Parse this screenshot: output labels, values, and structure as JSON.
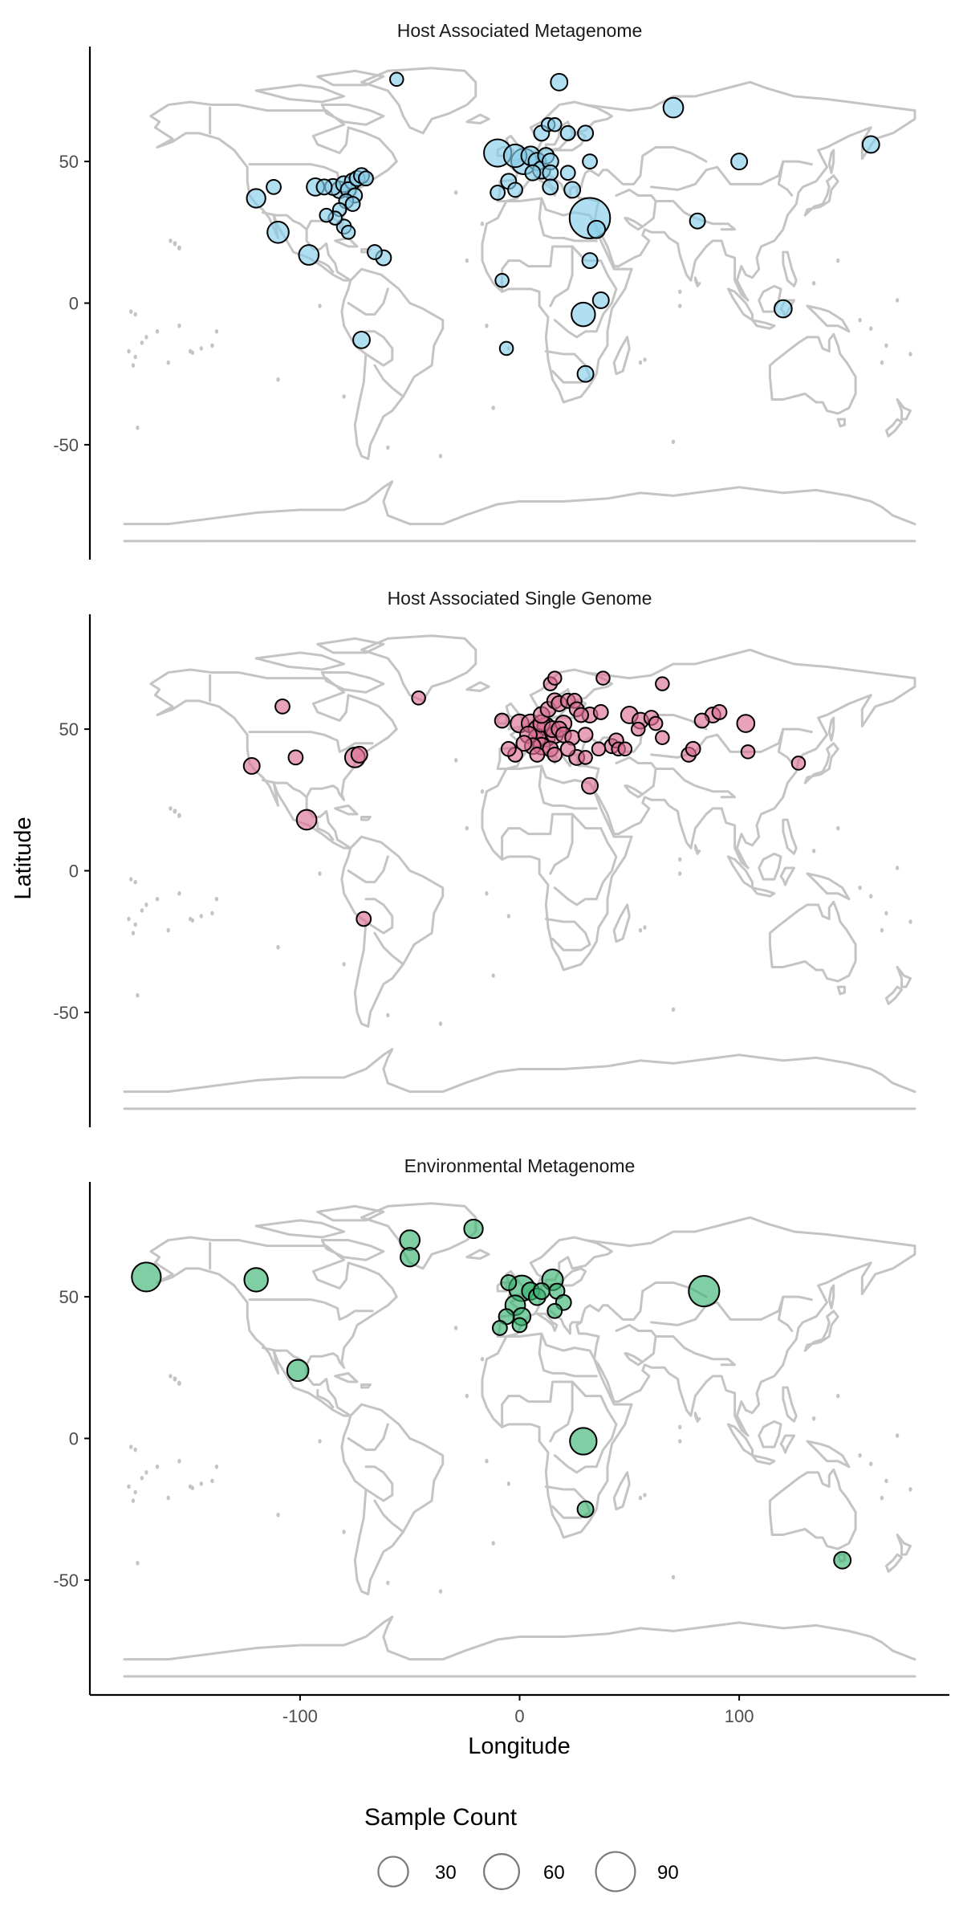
{
  "chart_data": {
    "type": "scatter",
    "subtype": "faceted world map bubble plot",
    "xlabel": "Longitude",
    "ylabel": "Latitude",
    "xlim": [
      -180,
      180
    ],
    "ylim": [
      -90,
      90
    ],
    "x_ticks": [
      -100,
      0,
      100
    ],
    "x_tick_labels": [
      "-100",
      "0",
      "100"
    ],
    "y_ticks": [
      50,
      0,
      -50
    ],
    "y_tick_labels": [
      "50",
      "0",
      "-50"
    ],
    "grid": false,
    "legend": {
      "title": "Sample Count",
      "position": "bottom",
      "sizes": [
        30,
        60,
        90
      ],
      "labels": [
        "30",
        "60",
        "90"
      ]
    },
    "panels": [
      {
        "title": "Host Associated Metagenome",
        "color": "#87ceeb",
        "points": [
          {
            "x": -120,
            "y": 37,
            "count": 10
          },
          {
            "x": -110,
            "y": 25,
            "count": 15
          },
          {
            "x": -96,
            "y": 17,
            "count": 12
          },
          {
            "x": -112,
            "y": 41,
            "count": 4
          },
          {
            "x": -93,
            "y": 41,
            "count": 8
          },
          {
            "x": -89,
            "y": 41,
            "count": 5
          },
          {
            "x": -85,
            "y": 41,
            "count": 6
          },
          {
            "x": -82,
            "y": 40,
            "count": 7
          },
          {
            "x": -80,
            "y": 42,
            "count": 6
          },
          {
            "x": -78,
            "y": 40,
            "count": 5
          },
          {
            "x": -76,
            "y": 43,
            "count": 6
          },
          {
            "x": -74,
            "y": 44,
            "count": 5
          },
          {
            "x": -72,
            "y": 45,
            "count": 5
          },
          {
            "x": -70,
            "y": 44,
            "count": 4
          },
          {
            "x": -75,
            "y": 38,
            "count": 4
          },
          {
            "x": -79,
            "y": 36,
            "count": 4
          },
          {
            "x": -82,
            "y": 33,
            "count": 3
          },
          {
            "x": -76,
            "y": 35,
            "count": 4
          },
          {
            "x": -84,
            "y": 30,
            "count": 3
          },
          {
            "x": -80,
            "y": 27,
            "count": 4
          },
          {
            "x": -78,
            "y": 25,
            "count": 3
          },
          {
            "x": -88,
            "y": 31,
            "count": 3
          },
          {
            "x": -66,
            "y": 18,
            "count": 4
          },
          {
            "x": -62,
            "y": 16,
            "count": 5
          },
          {
            "x": -72,
            "y": -13,
            "count": 7
          },
          {
            "x": -56,
            "y": 79,
            "count": 3
          },
          {
            "x": -10,
            "y": 53,
            "count": 30
          },
          {
            "x": -2,
            "y": 52,
            "count": 18
          },
          {
            "x": 2,
            "y": 50,
            "count": 25
          },
          {
            "x": 5,
            "y": 52,
            "count": 10
          },
          {
            "x": 8,
            "y": 50,
            "count": 8
          },
          {
            "x": 12,
            "y": 52,
            "count": 6
          },
          {
            "x": 14,
            "y": 50,
            "count": 6
          },
          {
            "x": 6,
            "y": 46,
            "count": 5
          },
          {
            "x": 10,
            "y": 47,
            "count": 8
          },
          {
            "x": 14,
            "y": 46,
            "count": 5
          },
          {
            "x": -5,
            "y": 43,
            "count": 5
          },
          {
            "x": -2,
            "y": 40,
            "count": 4
          },
          {
            "x": -10,
            "y": 39,
            "count": 4
          },
          {
            "x": 14,
            "y": 41,
            "count": 5
          },
          {
            "x": 22,
            "y": 46,
            "count": 4
          },
          {
            "x": 24,
            "y": 40,
            "count": 6
          },
          {
            "x": 10,
            "y": 60,
            "count": 5
          },
          {
            "x": 13,
            "y": 63,
            "count": 3
          },
          {
            "x": 16,
            "y": 63,
            "count": 3
          },
          {
            "x": 22,
            "y": 60,
            "count": 4
          },
          {
            "x": 18,
            "y": 78,
            "count": 7
          },
          {
            "x": 32,
            "y": 30,
            "count": 80
          },
          {
            "x": 35,
            "y": 26,
            "count": 8
          },
          {
            "x": 32,
            "y": 15,
            "count": 5
          },
          {
            "x": 37,
            "y": 1,
            "count": 6
          },
          {
            "x": 29,
            "y": -4,
            "count": 20
          },
          {
            "x": 30,
            "y": -25,
            "count": 6
          },
          {
            "x": -8,
            "y": 8,
            "count": 3
          },
          {
            "x": -6,
            "y": -16,
            "count": 3
          },
          {
            "x": 32,
            "y": 50,
            "count": 4
          },
          {
            "x": 30,
            "y": 60,
            "count": 5
          },
          {
            "x": 70,
            "y": 69,
            "count": 12
          },
          {
            "x": 100,
            "y": 50,
            "count": 6
          },
          {
            "x": 81,
            "y": 29,
            "count": 5
          },
          {
            "x": 120,
            "y": -2,
            "count": 8
          },
          {
            "x": 160,
            "y": 56,
            "count": 7
          }
        ]
      },
      {
        "title": "Host Associated Single Genome",
        "color": "#db7093",
        "points": [
          {
            "x": -122,
            "y": 37,
            "count": 6
          },
          {
            "x": -108,
            "y": 58,
            "count": 4
          },
          {
            "x": -102,
            "y": 40,
            "count": 4
          },
          {
            "x": -75,
            "y": 40,
            "count": 12
          },
          {
            "x": -73,
            "y": 41,
            "count": 6
          },
          {
            "x": -97,
            "y": 18,
            "count": 12
          },
          {
            "x": -71,
            "y": -17,
            "count": 4
          },
          {
            "x": -46,
            "y": 61,
            "count": 3
          },
          {
            "x": -8,
            "y": 53,
            "count": 4
          },
          {
            "x": 0,
            "y": 52,
            "count": 9
          },
          {
            "x": 5,
            "y": 52,
            "count": 9
          },
          {
            "x": 8,
            "y": 50,
            "count": 8
          },
          {
            "x": 10,
            "y": 52,
            "count": 7
          },
          {
            "x": 12,
            "y": 51,
            "count": 8
          },
          {
            "x": 15,
            "y": 50,
            "count": 6
          },
          {
            "x": 18,
            "y": 50,
            "count": 5
          },
          {
            "x": 20,
            "y": 52,
            "count": 6
          },
          {
            "x": 4,
            "y": 48,
            "count": 7
          },
          {
            "x": 8,
            "y": 47,
            "count": 8
          },
          {
            "x": 12,
            "y": 47,
            "count": 9
          },
          {
            "x": 16,
            "y": 48,
            "count": 7
          },
          {
            "x": 20,
            "y": 48,
            "count": 5
          },
          {
            "x": 24,
            "y": 47,
            "count": 4
          },
          {
            "x": 2,
            "y": 45,
            "count": 5
          },
          {
            "x": 6,
            "y": 44,
            "count": 6
          },
          {
            "x": 10,
            "y": 44,
            "count": 7
          },
          {
            "x": 14,
            "y": 43,
            "count": 5
          },
          {
            "x": -2,
            "y": 41,
            "count": 4
          },
          {
            "x": -5,
            "y": 43,
            "count": 4
          },
          {
            "x": 8,
            "y": 41,
            "count": 4
          },
          {
            "x": 16,
            "y": 41,
            "count": 4
          },
          {
            "x": 22,
            "y": 43,
            "count": 4
          },
          {
            "x": 10,
            "y": 55,
            "count": 6
          },
          {
            "x": 13,
            "y": 57,
            "count": 5
          },
          {
            "x": 16,
            "y": 60,
            "count": 5
          },
          {
            "x": 18,
            "y": 59,
            "count": 5
          },
          {
            "x": 22,
            "y": 60,
            "count": 4
          },
          {
            "x": 25,
            "y": 60,
            "count": 4
          },
          {
            "x": 26,
            "y": 57,
            "count": 4
          },
          {
            "x": 28,
            "y": 55,
            "count": 4
          },
          {
            "x": 14,
            "y": 66,
            "count": 3
          },
          {
            "x": 16,
            "y": 68,
            "count": 3
          },
          {
            "x": 38,
            "y": 68,
            "count": 3
          },
          {
            "x": 32,
            "y": 55,
            "count": 5
          },
          {
            "x": 37,
            "y": 56,
            "count": 4
          },
          {
            "x": 30,
            "y": 48,
            "count": 4
          },
          {
            "x": 26,
            "y": 40,
            "count": 5
          },
          {
            "x": 30,
            "y": 40,
            "count": 3
          },
          {
            "x": 36,
            "y": 43,
            "count": 3
          },
          {
            "x": 42,
            "y": 44,
            "count": 4
          },
          {
            "x": 44,
            "y": 46,
            "count": 4
          },
          {
            "x": 45,
            "y": 43,
            "count": 3
          },
          {
            "x": 48,
            "y": 43,
            "count": 3
          },
          {
            "x": 50,
            "y": 55,
            "count": 7
          },
          {
            "x": 55,
            "y": 53,
            "count": 6
          },
          {
            "x": 60,
            "y": 54,
            "count": 4
          },
          {
            "x": 65,
            "y": 47,
            "count": 3
          },
          {
            "x": 62,
            "y": 52,
            "count": 3
          },
          {
            "x": 65,
            "y": 66,
            "count": 3
          },
          {
            "x": 77,
            "y": 41,
            "count": 4
          },
          {
            "x": 79,
            "y": 43,
            "count": 4
          },
          {
            "x": 83,
            "y": 53,
            "count": 4
          },
          {
            "x": 88,
            "y": 55,
            "count": 5
          },
          {
            "x": 91,
            "y": 56,
            "count": 4
          },
          {
            "x": 103,
            "y": 52,
            "count": 8
          },
          {
            "x": 104,
            "y": 42,
            "count": 3
          },
          {
            "x": 127,
            "y": 38,
            "count": 3
          },
          {
            "x": 32,
            "y": 30,
            "count": 6
          },
          {
            "x": 54,
            "y": 50,
            "count": 3
          }
        ]
      },
      {
        "title": "Environmental Metagenome",
        "color": "#3cb371",
        "points": [
          {
            "x": -170,
            "y": 57,
            "count": 35
          },
          {
            "x": -120,
            "y": 56,
            "count": 20
          },
          {
            "x": -101,
            "y": 24,
            "count": 15
          },
          {
            "x": -50,
            "y": 70,
            "count": 12
          },
          {
            "x": -50,
            "y": 64,
            "count": 10
          },
          {
            "x": -21,
            "y": 74,
            "count": 10
          },
          {
            "x": 1,
            "y": 53,
            "count": 25
          },
          {
            "x": -5,
            "y": 55,
            "count": 5
          },
          {
            "x": 5,
            "y": 52,
            "count": 8
          },
          {
            "x": 8,
            "y": 50,
            "count": 7
          },
          {
            "x": 10,
            "y": 52,
            "count": 6
          },
          {
            "x": 15,
            "y": 56,
            "count": 14
          },
          {
            "x": 17,
            "y": 52,
            "count": 5
          },
          {
            "x": -2,
            "y": 47,
            "count": 12
          },
          {
            "x": 1,
            "y": 43,
            "count": 8
          },
          {
            "x": -6,
            "y": 43,
            "count": 5
          },
          {
            "x": -9,
            "y": 39,
            "count": 4
          },
          {
            "x": 0,
            "y": 40,
            "count": 4
          },
          {
            "x": 20,
            "y": 48,
            "count": 5
          },
          {
            "x": 16,
            "y": 45,
            "count": 4
          },
          {
            "x": 84,
            "y": 52,
            "count": 40
          },
          {
            "x": 29,
            "y": -1,
            "count": 28
          },
          {
            "x": 30,
            "y": -25,
            "count": 6
          },
          {
            "x": 147,
            "y": -43,
            "count": 7
          }
        ]
      }
    ]
  }
}
